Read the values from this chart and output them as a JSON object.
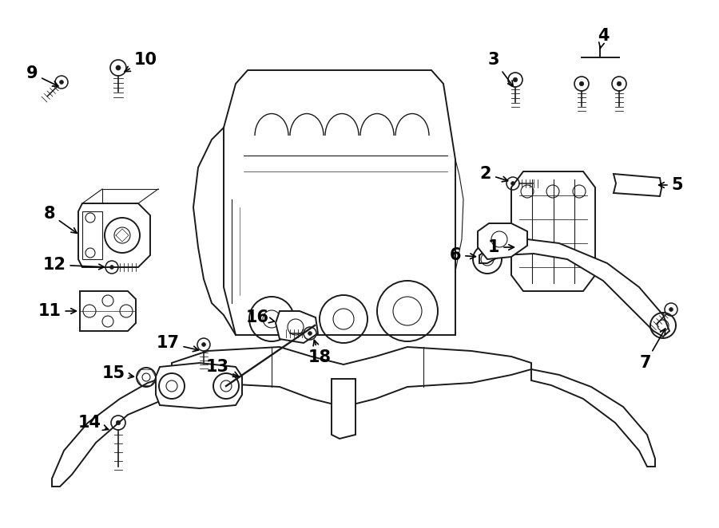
{
  "bg_color": "#ffffff",
  "line_color": "#1a1a1a",
  "fig_width": 9.0,
  "fig_height": 6.62,
  "dpi": 100,
  "label_fontsize": 15,
  "lw_main": 1.4,
  "lw_thin": 0.8,
  "lw_thick": 2.0
}
